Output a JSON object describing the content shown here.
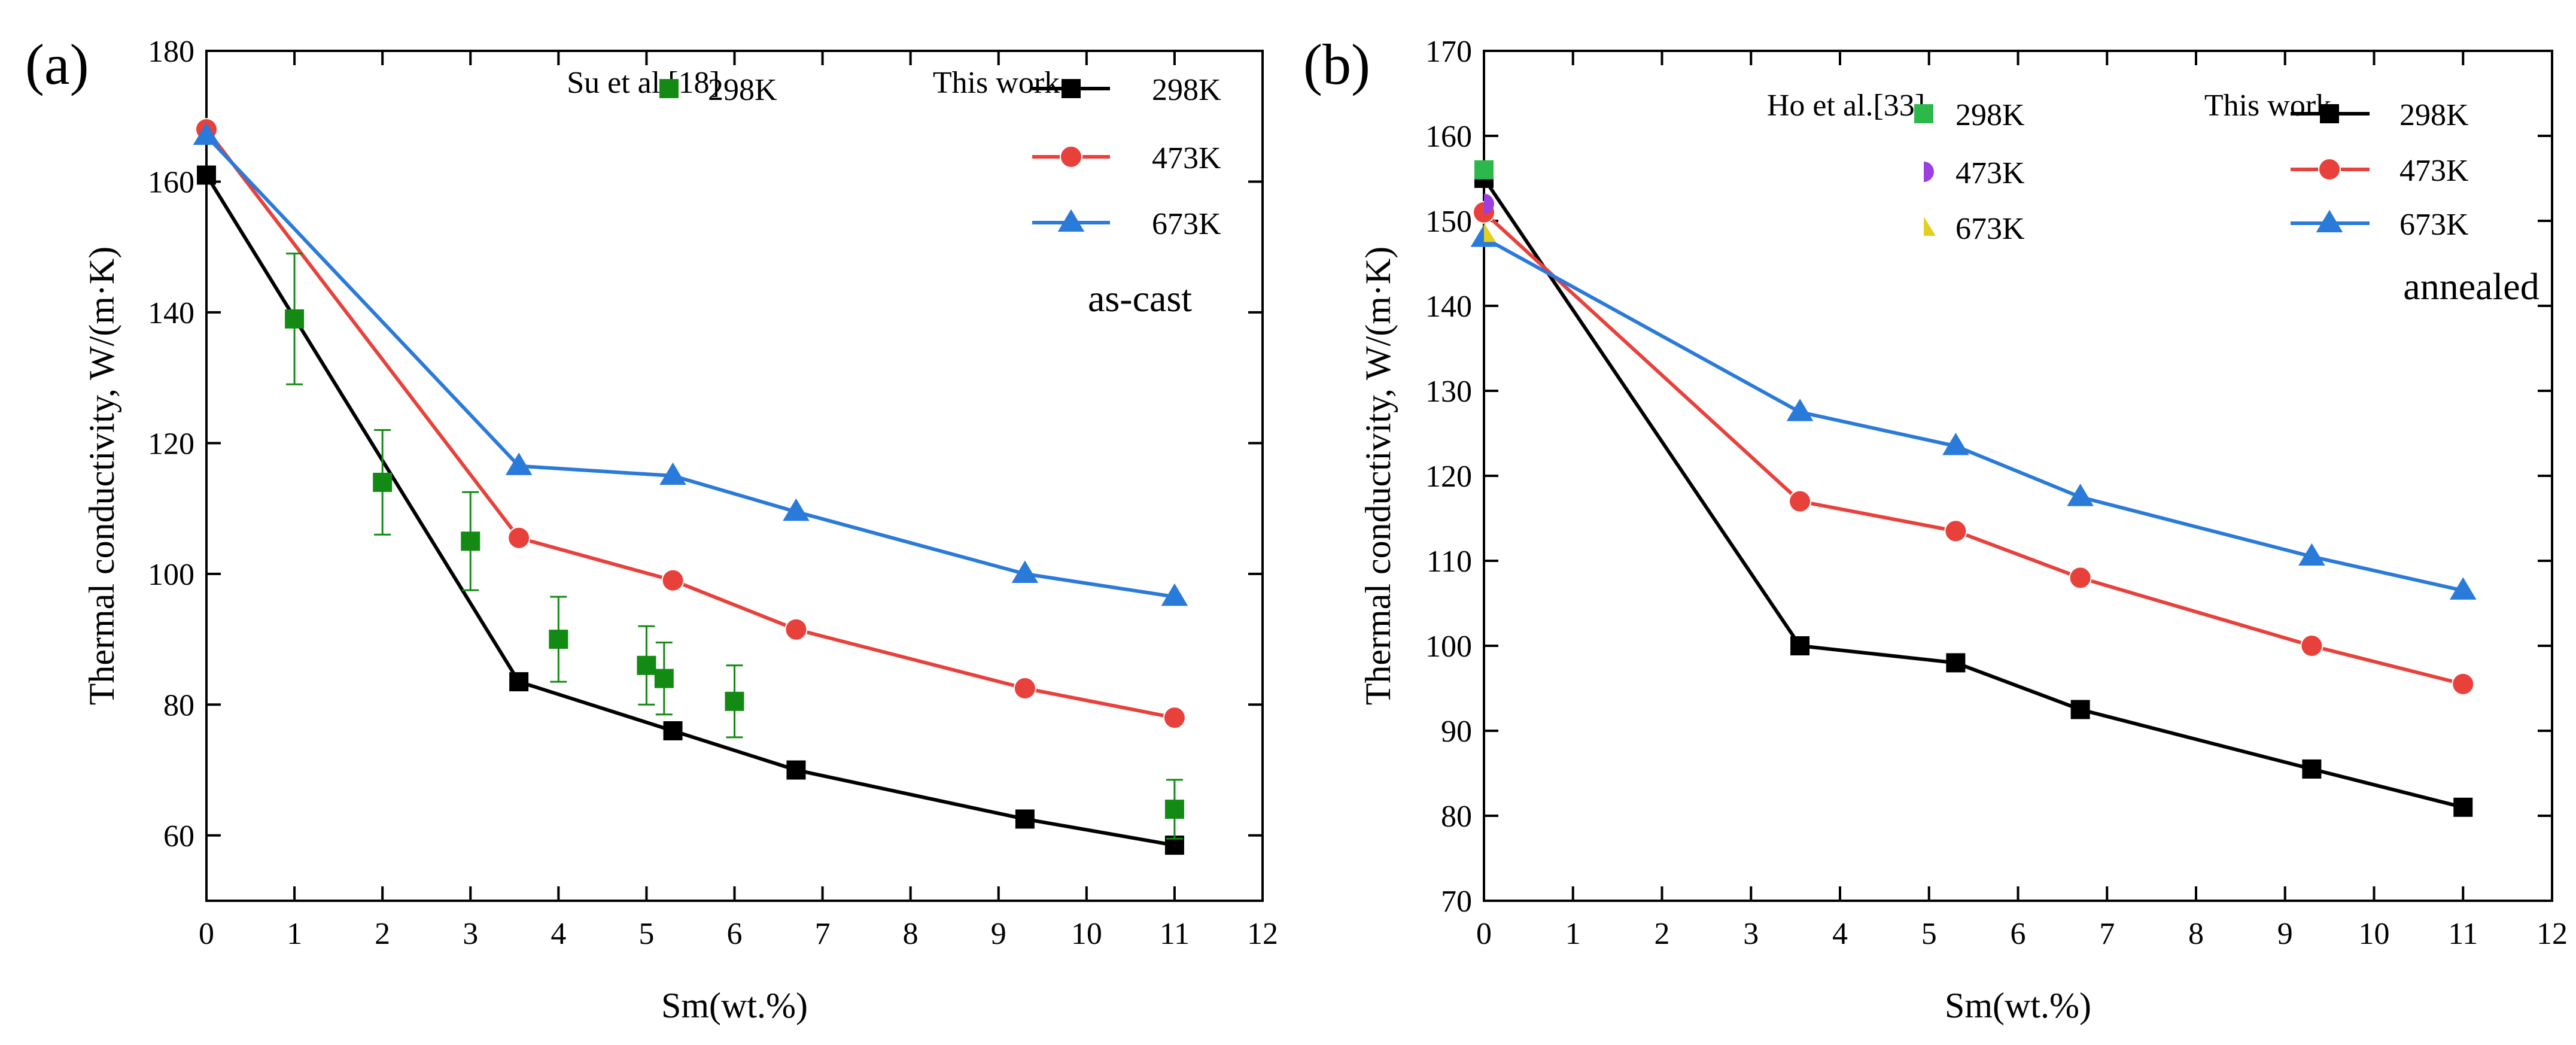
{
  "chart_data": [
    {
      "type": "line",
      "panel_label": "(a)",
      "annotation": "as-cast",
      "xlabel": "Sm(wt.%)",
      "ylabel": "Thermal conductivity, W/(m·K)",
      "xlim": [
        0,
        12
      ],
      "ylim": [
        50,
        180
      ],
      "xticks": [
        "0",
        "1",
        "2",
        "3",
        "4",
        "5",
        "6",
        "7",
        "8",
        "9",
        "10",
        "11",
        "12"
      ],
      "yticks": [
        "60",
        "80",
        "100",
        "120",
        "140",
        "160",
        "180"
      ],
      "legend_groups": [
        {
          "label": "Su et al.[18]"
        },
        {
          "label": "This work"
        }
      ],
      "series": [
        {
          "name": "298K",
          "group": "This work",
          "marker": "square",
          "color": "#000000",
          "line": true,
          "x": [
            0,
            3.55,
            5.3,
            6.7,
            9.3,
            11
          ],
          "values": [
            161,
            83.5,
            76,
            70,
            62.5,
            58.5
          ]
        },
        {
          "name": "473K",
          "group": "This work",
          "marker": "circle",
          "color": "#e8413c",
          "line": true,
          "x": [
            0,
            3.55,
            5.3,
            6.7,
            9.3,
            11
          ],
          "values": [
            168,
            105.5,
            99,
            91.5,
            82.5,
            78
          ]
        },
        {
          "name": "673K",
          "group": "This work",
          "marker": "triangle",
          "color": "#2a7ad9",
          "line": true,
          "x": [
            0,
            3.55,
            5.3,
            6.7,
            9.3,
            11
          ],
          "values": [
            167,
            116.5,
            115,
            109.5,
            100,
            96.5
          ]
        },
        {
          "name": "298K",
          "group": "Su et al.[18]",
          "marker": "square",
          "color": "#138a13",
          "line": false,
          "x": [
            1,
            2,
            3,
            4,
            5,
            5.2,
            6,
            11
          ],
          "values": [
            139,
            114,
            105,
            90,
            86,
            84,
            80.5,
            64
          ],
          "errors": [
            10,
            8,
            7.5,
            6.5,
            6,
            5.5,
            5.5,
            4.5
          ]
        }
      ]
    },
    {
      "type": "line",
      "panel_label": "(b)",
      "annotation": "annealed",
      "xlabel": "Sm(wt.%)",
      "ylabel": "Thermal conductivity, W/(m·K)",
      "xlim": [
        0,
        12
      ],
      "ylim": [
        70,
        170
      ],
      "xticks": [
        "0",
        "1",
        "2",
        "3",
        "4",
        "5",
        "6",
        "7",
        "8",
        "9",
        "10",
        "11",
        "12"
      ],
      "yticks": [
        "70",
        "80",
        "90",
        "100",
        "110",
        "120",
        "130",
        "140",
        "150",
        "160",
        "170"
      ],
      "legend_groups": [
        {
          "label": "Ho et al.[33]"
        },
        {
          "label": "This work"
        }
      ],
      "series": [
        {
          "name": "298K",
          "group": "This work",
          "marker": "square",
          "color": "#000000",
          "line": true,
          "x": [
            0,
            3.55,
            5.3,
            6.7,
            9.3,
            11
          ],
          "values": [
            155,
            100,
            98,
            92.5,
            85.5,
            81
          ]
        },
        {
          "name": "473K",
          "group": "This work",
          "marker": "circle",
          "color": "#e8413c",
          "line": true,
          "x": [
            0,
            3.55,
            5.3,
            6.7,
            9.3,
            11
          ],
          "values": [
            151,
            117,
            113.5,
            108,
            100,
            95.5
          ]
        },
        {
          "name": "673K",
          "group": "This work",
          "marker": "triangle",
          "color": "#2a7ad9",
          "line": true,
          "x": [
            0,
            3.55,
            5.3,
            6.7,
            9.3,
            11
          ],
          "values": [
            148,
            127.5,
            123.5,
            117.5,
            110.5,
            106.5
          ]
        },
        {
          "name": "298K",
          "group": "Ho et al.[33]",
          "marker": "square",
          "color": "#2db84b",
          "line": false,
          "x": [
            0
          ],
          "values": [
            156
          ]
        },
        {
          "name": "473K",
          "group": "Ho et al.[33]",
          "marker": "halfcircle",
          "color": "#9b3fe0",
          "line": false,
          "x": [
            0
          ],
          "values": [
            152
          ]
        },
        {
          "name": "673K",
          "group": "Ho et al.[33]",
          "marker": "halftriangle",
          "color": "#e3cf1e",
          "line": false,
          "x": [
            0
          ],
          "values": [
            148.5
          ]
        }
      ]
    }
  ]
}
